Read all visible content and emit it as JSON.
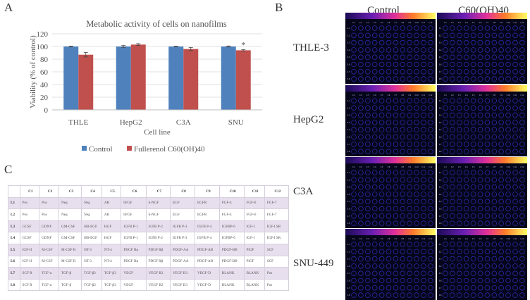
{
  "panels": {
    "a": "A",
    "b": "B",
    "c": "C"
  },
  "chart_data": {
    "type": "bar",
    "title": "Metabolic activity  of cells on nanofilms",
    "xlabel": "Cell line",
    "ylabel": "Viability (% of control)",
    "categories": [
      "THLE",
      "HepG2",
      "C3A",
      "SNU"
    ],
    "ylim": [
      0,
      120
    ],
    "yticks": [
      0,
      20,
      40,
      60,
      80,
      100,
      120
    ],
    "grid": true,
    "legend_position": "bottom",
    "series": [
      {
        "name": "Control",
        "values": [
          100,
          100,
          100,
          100
        ],
        "errors": [
          0.6,
          1.5,
          0.6,
          0.8
        ],
        "color": "#4F81BD"
      },
      {
        "name": "Fullerenol C60(OH)40",
        "values": [
          87,
          103,
          96,
          94
        ],
        "errors": [
          3.5,
          1.5,
          2.5,
          1.2
        ],
        "color": "#C0504D"
      }
    ],
    "annotations": [
      {
        "category": "SNU",
        "text": "*"
      }
    ]
  },
  "arrays": {
    "column_titles": [
      "Control",
      "C60(OH)40"
    ],
    "row_labels": [
      "THLE-3",
      "HepG2",
      "C3A",
      "SNU-449"
    ],
    "col_labels": [
      "C1",
      "C2",
      "C3",
      "C4",
      "C5",
      "C6",
      "C7",
      "C8",
      "C9",
      "C10",
      "C11",
      "C12"
    ],
    "row_codes": [
      "L1",
      "L2",
      "L3",
      "L4",
      "L5",
      "L6",
      "L7",
      "L8"
    ]
  },
  "table": {
    "headers": [
      "",
      "C1",
      "C2",
      "C3",
      "C4",
      "C5",
      "C6",
      "C7",
      "C8",
      "C9",
      "C10",
      "C11",
      "C12"
    ],
    "rows": [
      [
        "L1",
        "Pos",
        "Pos",
        "Neg",
        "Neg",
        "AR",
        "bFGF",
        "b-NGF",
        "EGF",
        "EGFR",
        "FGF-4",
        "FGF-6",
        "FGF-7"
      ],
      [
        "L2",
        "Pos",
        "Pos",
        "Neg",
        "Neg",
        "AR",
        "bFGF",
        "b-NGF",
        "EGF",
        "EGFR",
        "FGF-4",
        "FGF-6",
        "FGF-7"
      ],
      [
        "L3",
        "GCSF",
        "GDNF",
        "GM-CSF",
        "HB-EGF",
        "HGF",
        "IGFB P-1",
        "IGFB P-2",
        "IGFB P-3",
        "IGFB P-4",
        "IGFBP-6",
        "IGF-I",
        "IGF-I SR"
      ],
      [
        "L4",
        "GCSF",
        "GDNF",
        "GM-CSF",
        "HB-EGF",
        "HGF",
        "IGFB P-1",
        "IGFB P-2",
        "IGFB P-3",
        "IGFB P-4",
        "IGFBP-6",
        "IGF-I",
        "IGF-I SR"
      ],
      [
        "L5",
        "IGF-II",
        "M-CSF",
        "M-CSF R",
        "NT-3",
        "NT-4",
        "PDGF Rα",
        "PDGF Rβ",
        "PDGF-AA",
        "PDGF-AB",
        "PDGF-BB",
        "PlGF",
        "SCF"
      ],
      [
        "L6",
        "IGF-II",
        "M-CSF",
        "M-CSF R",
        "NT-3",
        "NT-4",
        "PDGF Rα",
        "PDGF Rβ",
        "PDGF-AA",
        "PDGF-AB",
        "PDGF-BB",
        "PlGF",
        "SCF"
      ],
      [
        "L7",
        "SCF R",
        "TGF-α",
        "TGF-β",
        "TGF-β2",
        "TGF-β3",
        "VEGF",
        "VEGF R2",
        "VEGF R3",
        "VEGF-D",
        "BLANK",
        "BLANK",
        "Pos"
      ],
      [
        "L8",
        "SCF R",
        "TGF-α",
        "TGF-β",
        "TGF-β2",
        "TGF-β3",
        "VEGF",
        "VEGF R2",
        "VEGF R3",
        "VEGF-D",
        "BLANK",
        "BLANK",
        "Pos"
      ]
    ]
  }
}
